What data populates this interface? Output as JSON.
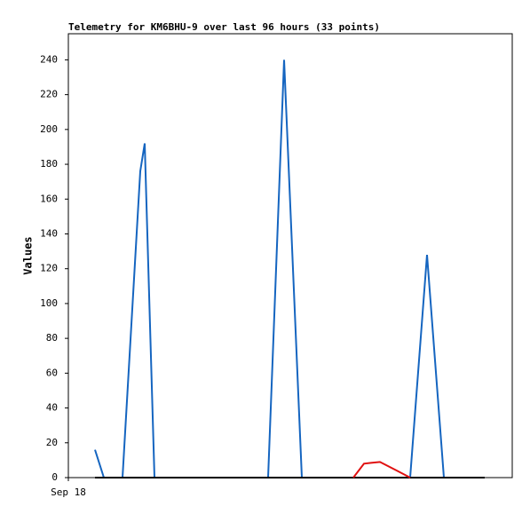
{
  "chart_data": {
    "type": "line",
    "title": "Telemetry for KM6BHU-9 over last 96 hours (33 points)",
    "y_label": "Values",
    "xlim": [
      0,
      100
    ],
    "xticks": [
      {
        "value": 0,
        "label": "Sep 18"
      }
    ],
    "ylim": [
      0,
      255
    ],
    "yticks": [
      0,
      20,
      40,
      60,
      80,
      100,
      120,
      140,
      160,
      180,
      200,
      220,
      240
    ],
    "series": [
      {
        "color": "#1565c0",
        "x": [
          6,
          8,
          12.2,
          16.2,
          17.2,
          19.4,
          45,
          48.6,
          52.6,
          77,
          80.8,
          84.6
        ],
        "values": [
          16,
          0,
          0,
          176,
          192,
          0,
          0,
          240,
          0,
          0,
          128,
          0
        ]
      },
      {
        "color": "#000000",
        "x": [
          6,
          93.8
        ],
        "values": [
          0,
          0
        ]
      },
      {
        "color": "#e01010",
        "x": [
          64.2,
          66.6,
          68.2,
          70.2,
          74,
          77
        ],
        "values": [
          0,
          8,
          8.5,
          9,
          4,
          0
        ]
      }
    ]
  }
}
